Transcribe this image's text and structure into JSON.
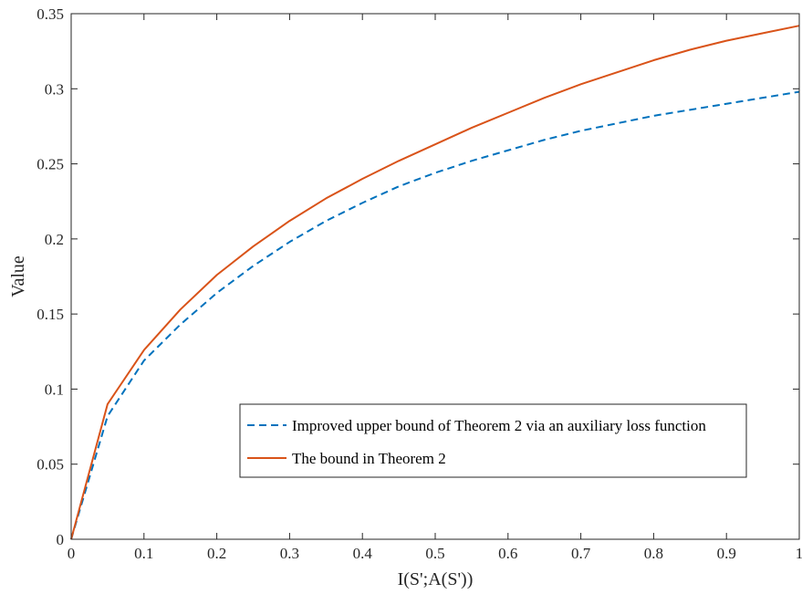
{
  "chart_data": {
    "type": "line",
    "title": "",
    "xlabel": "I(S';A(S'))",
    "ylabel": "Value",
    "xlim": [
      0,
      1
    ],
    "ylim": [
      0,
      0.35
    ],
    "xticks": [
      0,
      0.1,
      0.2,
      0.3,
      0.4,
      0.5,
      0.6,
      0.7,
      0.8,
      0.9,
      1
    ],
    "xtick_labels": [
      "0",
      "0.1",
      "0.2",
      "0.3",
      "0.4",
      "0.5",
      "0.6",
      "0.7",
      "0.8",
      "0.9",
      "1"
    ],
    "yticks": [
      0,
      0.05,
      0.1,
      0.15,
      0.2,
      0.25,
      0.3,
      0.35
    ],
    "ytick_labels": [
      "0",
      "0.05",
      "0.1",
      "0.15",
      "0.2",
      "0.25",
      "0.3",
      "0.35"
    ],
    "grid": false,
    "legend_position": "bottom-right",
    "series": [
      {
        "name": "Improved upper bound of Theorem 2 via an auxiliary loss function",
        "color": "#0072BD",
        "style": "dashed",
        "x": [
          0,
          0.05,
          0.1,
          0.15,
          0.2,
          0.25,
          0.3,
          0.35,
          0.4,
          0.45,
          0.5,
          0.55,
          0.6,
          0.65,
          0.7,
          0.75,
          0.8,
          0.85,
          0.9,
          0.95,
          1
        ],
        "y": [
          0,
          0.082,
          0.119,
          0.143,
          0.164,
          0.182,
          0.198,
          0.212,
          0.224,
          0.235,
          0.244,
          0.252,
          0.259,
          0.266,
          0.272,
          0.277,
          0.282,
          0.286,
          0.29,
          0.294,
          0.298
        ]
      },
      {
        "name": "The bound in Theorem 2",
        "color": "#D95319",
        "style": "solid",
        "x": [
          0,
          0.05,
          0.1,
          0.15,
          0.2,
          0.25,
          0.3,
          0.35,
          0.4,
          0.45,
          0.5,
          0.55,
          0.6,
          0.65,
          0.7,
          0.75,
          0.8,
          0.85,
          0.9,
          0.95,
          1
        ],
        "y": [
          0,
          0.09,
          0.126,
          0.153,
          0.176,
          0.195,
          0.212,
          0.227,
          0.24,
          0.252,
          0.263,
          0.274,
          0.284,
          0.294,
          0.303,
          0.311,
          0.319,
          0.326,
          0.332,
          0.337,
          0.342
        ]
      }
    ]
  }
}
